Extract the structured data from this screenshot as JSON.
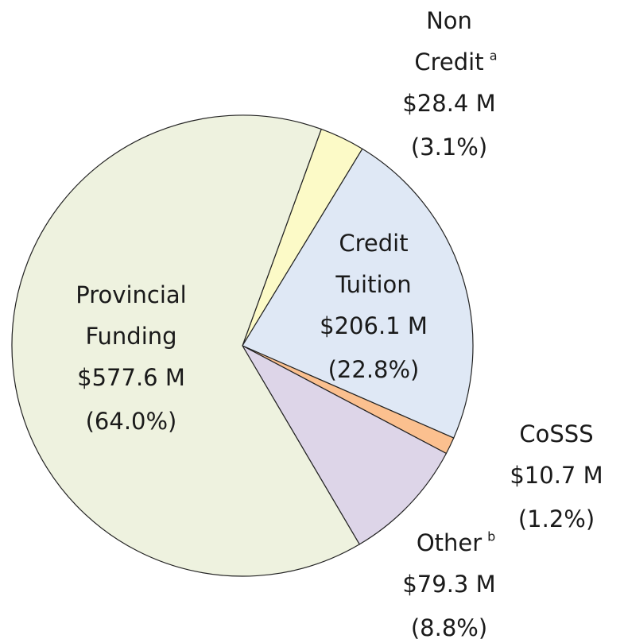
{
  "chart_data": {
    "type": "pie",
    "categories": [
      "Non Credit",
      "Credit Tuition",
      "CoSSS",
      "Other",
      "Provincial Funding"
    ],
    "footnotes": [
      "a",
      null,
      null,
      "b",
      null
    ],
    "values": [
      28.4,
      206.1,
      10.7,
      79.3,
      577.6
    ],
    "value_labels": [
      "$28.4 M",
      "$206.1 M",
      "$10.7 M",
      "$79.3 M",
      "$577.6 M"
    ],
    "shares": [
      3.1,
      22.8,
      1.2,
      8.8,
      64.0
    ],
    "share_labels": [
      "(3.1%)",
      "(22.8%)",
      "(1.2%)",
      "(8.8%)",
      "(64.0%)"
    ],
    "colors": [
      "#fcfac7",
      "#dfe8f5",
      "#fbc08f",
      "#ddd5e8",
      "#eef2df"
    ]
  }
}
